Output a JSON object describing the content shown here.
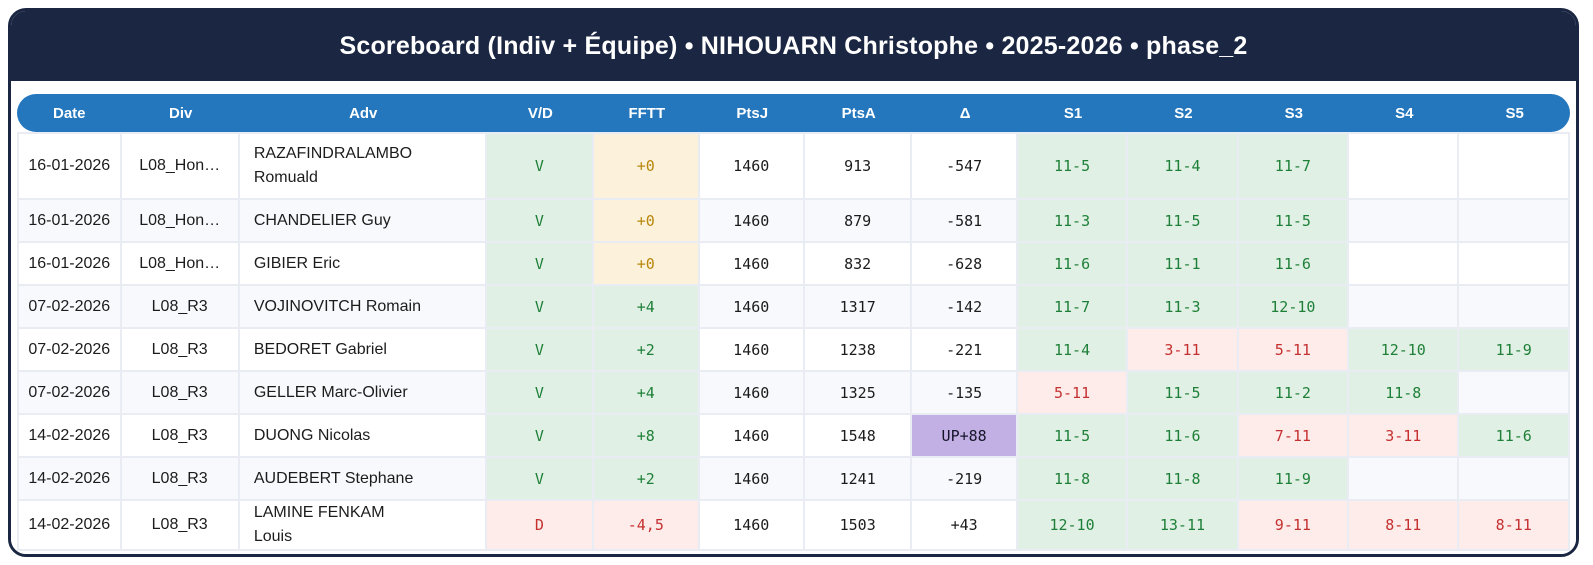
{
  "header": {
    "title": "Scoreboard (Indiv + Équipe) • NIHOUARN Christophe • 2025-2026 • phase_2"
  },
  "colors": {
    "navy": "#1b2742",
    "header_blue": "#2577bd",
    "win_bg": "#e1f0e5",
    "win_text": "#1e8038",
    "loss_bg": "#fdecea",
    "loss_text": "#c53030",
    "zero_bg": "#fcf2dc",
    "zero_text": "#b8860b",
    "up_bg": "#c2afe3",
    "alt_row_bg": "#f7f9fc"
  },
  "table": {
    "columns": [
      "Date",
      "Div",
      "Adv",
      "V/D",
      "FFTT",
      "PtsJ",
      "PtsA",
      "Δ",
      "S1",
      "S2",
      "S3",
      "S4",
      "S5"
    ],
    "rows": [
      {
        "date": "16-01-2026",
        "div": "L08_Hon…",
        "adv": "RAZAFINDRALAMBO Romuald",
        "vd": {
          "text": "V",
          "type": "win"
        },
        "fftt": {
          "text": "+0",
          "type": "zero"
        },
        "ptsj": "1460",
        "ptsa": "913",
        "delta": {
          "text": "-547",
          "type": "plain"
        },
        "sets": [
          {
            "text": "11-5",
            "type": "win"
          },
          {
            "text": "11-4",
            "type": "win"
          },
          {
            "text": "11-7",
            "type": "win"
          },
          {
            "text": "",
            "type": "empty"
          },
          {
            "text": "",
            "type": "empty"
          }
        ]
      },
      {
        "date": "16-01-2026",
        "div": "L08_Hon…",
        "adv": "CHANDELIER Guy",
        "vd": {
          "text": "V",
          "type": "win"
        },
        "fftt": {
          "text": "+0",
          "type": "zero"
        },
        "ptsj": "1460",
        "ptsa": "879",
        "delta": {
          "text": "-581",
          "type": "plain"
        },
        "sets": [
          {
            "text": "11-3",
            "type": "win"
          },
          {
            "text": "11-5",
            "type": "win"
          },
          {
            "text": "11-5",
            "type": "win"
          },
          {
            "text": "",
            "type": "empty"
          },
          {
            "text": "",
            "type": "empty"
          }
        ]
      },
      {
        "date": "16-01-2026",
        "div": "L08_Hon…",
        "adv": "GIBIER Eric",
        "vd": {
          "text": "V",
          "type": "win"
        },
        "fftt": {
          "text": "+0",
          "type": "zero"
        },
        "ptsj": "1460",
        "ptsa": "832",
        "delta": {
          "text": "-628",
          "type": "plain"
        },
        "sets": [
          {
            "text": "11-6",
            "type": "win"
          },
          {
            "text": "11-1",
            "type": "win"
          },
          {
            "text": "11-6",
            "type": "win"
          },
          {
            "text": "",
            "type": "empty"
          },
          {
            "text": "",
            "type": "empty"
          }
        ]
      },
      {
        "date": "07-02-2026",
        "div": "L08_R3",
        "adv": "VOJINOVITCH Romain",
        "vd": {
          "text": "V",
          "type": "win"
        },
        "fftt": {
          "text": "+4",
          "type": "win"
        },
        "ptsj": "1460",
        "ptsa": "1317",
        "delta": {
          "text": "-142",
          "type": "plain"
        },
        "sets": [
          {
            "text": "11-7",
            "type": "win"
          },
          {
            "text": "11-3",
            "type": "win"
          },
          {
            "text": "12-10",
            "type": "win"
          },
          {
            "text": "",
            "type": "empty"
          },
          {
            "text": "",
            "type": "empty"
          }
        ]
      },
      {
        "date": "07-02-2026",
        "div": "L08_R3",
        "adv": "BEDORET Gabriel",
        "vd": {
          "text": "V",
          "type": "win"
        },
        "fftt": {
          "text": "+2",
          "type": "win"
        },
        "ptsj": "1460",
        "ptsa": "1238",
        "delta": {
          "text": "-221",
          "type": "plain"
        },
        "sets": [
          {
            "text": "11-4",
            "type": "win"
          },
          {
            "text": "3-11",
            "type": "loss"
          },
          {
            "text": "5-11",
            "type": "loss"
          },
          {
            "text": "12-10",
            "type": "win"
          },
          {
            "text": "11-9",
            "type": "win"
          }
        ]
      },
      {
        "date": "07-02-2026",
        "div": "L08_R3",
        "adv": "GELLER Marc-Olivier",
        "vd": {
          "text": "V",
          "type": "win"
        },
        "fftt": {
          "text": "+4",
          "type": "win"
        },
        "ptsj": "1460",
        "ptsa": "1325",
        "delta": {
          "text": "-135",
          "type": "plain"
        },
        "sets": [
          {
            "text": "5-11",
            "type": "loss"
          },
          {
            "text": "11-5",
            "type": "win"
          },
          {
            "text": "11-2",
            "type": "win"
          },
          {
            "text": "11-8",
            "type": "win"
          },
          {
            "text": "",
            "type": "empty"
          }
        ]
      },
      {
        "date": "14-02-2026",
        "div": "L08_R3",
        "adv": "DUONG Nicolas",
        "vd": {
          "text": "V",
          "type": "win"
        },
        "fftt": {
          "text": "+8",
          "type": "win"
        },
        "ptsj": "1460",
        "ptsa": "1548",
        "delta": {
          "text": "UP+88",
          "type": "up"
        },
        "sets": [
          {
            "text": "11-5",
            "type": "win"
          },
          {
            "text": "11-6",
            "type": "win"
          },
          {
            "text": "7-11",
            "type": "loss"
          },
          {
            "text": "3-11",
            "type": "loss"
          },
          {
            "text": "11-6",
            "type": "win"
          }
        ]
      },
      {
        "date": "14-02-2026",
        "div": "L08_R3",
        "adv": "AUDEBERT Stephane",
        "vd": {
          "text": "V",
          "type": "win"
        },
        "fftt": {
          "text": "+2",
          "type": "win"
        },
        "ptsj": "1460",
        "ptsa": "1241",
        "delta": {
          "text": "-219",
          "type": "plain"
        },
        "sets": [
          {
            "text": "11-8",
            "type": "win"
          },
          {
            "text": "11-8",
            "type": "win"
          },
          {
            "text": "11-9",
            "type": "win"
          },
          {
            "text": "",
            "type": "empty"
          },
          {
            "text": "",
            "type": "empty"
          }
        ]
      },
      {
        "date": "14-02-2026",
        "div": "L08_R3",
        "adv": "LAMINE FENKAM Louis",
        "vd": {
          "text": "D",
          "type": "loss"
        },
        "fftt": {
          "text": "-4,5",
          "type": "loss"
        },
        "ptsj": "1460",
        "ptsa": "1503",
        "delta": {
          "text": "+43",
          "type": "plain"
        },
        "sets": [
          {
            "text": "12-10",
            "type": "win"
          },
          {
            "text": "13-11",
            "type": "win"
          },
          {
            "text": "9-11",
            "type": "loss"
          },
          {
            "text": "8-11",
            "type": "loss"
          },
          {
            "text": "8-11",
            "type": "loss"
          }
        ]
      }
    ]
  }
}
